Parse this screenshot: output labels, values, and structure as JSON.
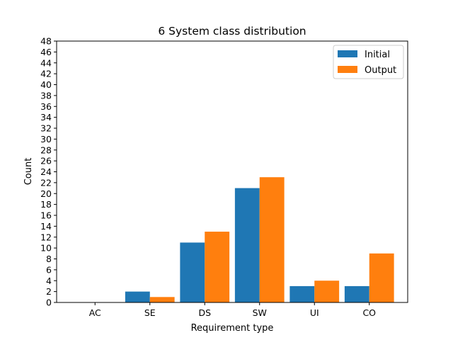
{
  "chart_data": {
    "type": "bar",
    "title": "6 System class distribution",
    "xlabel": "Requirement type",
    "ylabel": "Count",
    "categories": [
      "AC",
      "SE",
      "DS",
      "SW",
      "UI",
      "CO"
    ],
    "series": [
      {
        "name": "Initial",
        "values": [
          0,
          2,
          11,
          21,
          3,
          3
        ],
        "color": "#1f77b4"
      },
      {
        "name": "Output",
        "values": [
          0,
          1,
          13,
          23,
          4,
          9
        ],
        "color": "#ff7f0e"
      }
    ],
    "ylim": [
      0,
      48
    ],
    "yticks": [
      0,
      2,
      4,
      6,
      8,
      10,
      12,
      14,
      16,
      18,
      20,
      22,
      24,
      26,
      28,
      30,
      32,
      34,
      36,
      38,
      40,
      42,
      44,
      46,
      48
    ],
    "grid": false,
    "legend_position": "top-right"
  }
}
